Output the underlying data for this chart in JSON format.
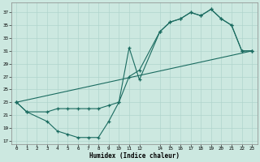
{
  "xlabel": "Humidex (Indice chaleur)",
  "bg_color": "#cce8e0",
  "grid_color": "#b0d4cc",
  "line_color": "#1a6b60",
  "xlim": [
    -0.5,
    23.5
  ],
  "ylim": [
    16.5,
    38.5
  ],
  "xticks": [
    0,
    1,
    2,
    3,
    4,
    5,
    6,
    7,
    8,
    9,
    10,
    11,
    12,
    14,
    15,
    16,
    17,
    18,
    19,
    20,
    21,
    22,
    23
  ],
  "yticks": [
    17,
    19,
    21,
    23,
    25,
    27,
    29,
    31,
    33,
    35,
    37
  ],
  "line1_x": [
    0,
    1,
    3,
    4,
    5,
    6,
    7,
    8,
    9,
    10,
    11,
    12,
    14,
    15,
    16,
    17,
    18,
    19,
    20,
    21,
    22,
    23
  ],
  "line1_y": [
    23,
    21.5,
    20,
    18.5,
    18,
    17.5,
    17.5,
    17.5,
    20,
    23,
    31.5,
    26.5,
    34,
    35.5,
    36,
    37,
    36.5,
    37.5,
    36,
    35,
    31,
    31
  ],
  "line2_x": [
    0,
    1,
    3,
    4,
    5,
    6,
    7,
    8,
    9,
    10,
    11,
    12,
    14,
    15,
    16,
    17,
    18,
    19,
    20,
    21,
    22,
    23
  ],
  "line2_y": [
    23,
    21.5,
    21.5,
    22,
    22,
    22,
    22,
    22,
    22.5,
    23,
    27,
    28,
    34,
    35.5,
    36,
    37,
    36.5,
    37.5,
    36,
    35,
    31,
    31
  ],
  "line3_x": [
    0,
    23
  ],
  "line3_y": [
    23,
    31
  ]
}
